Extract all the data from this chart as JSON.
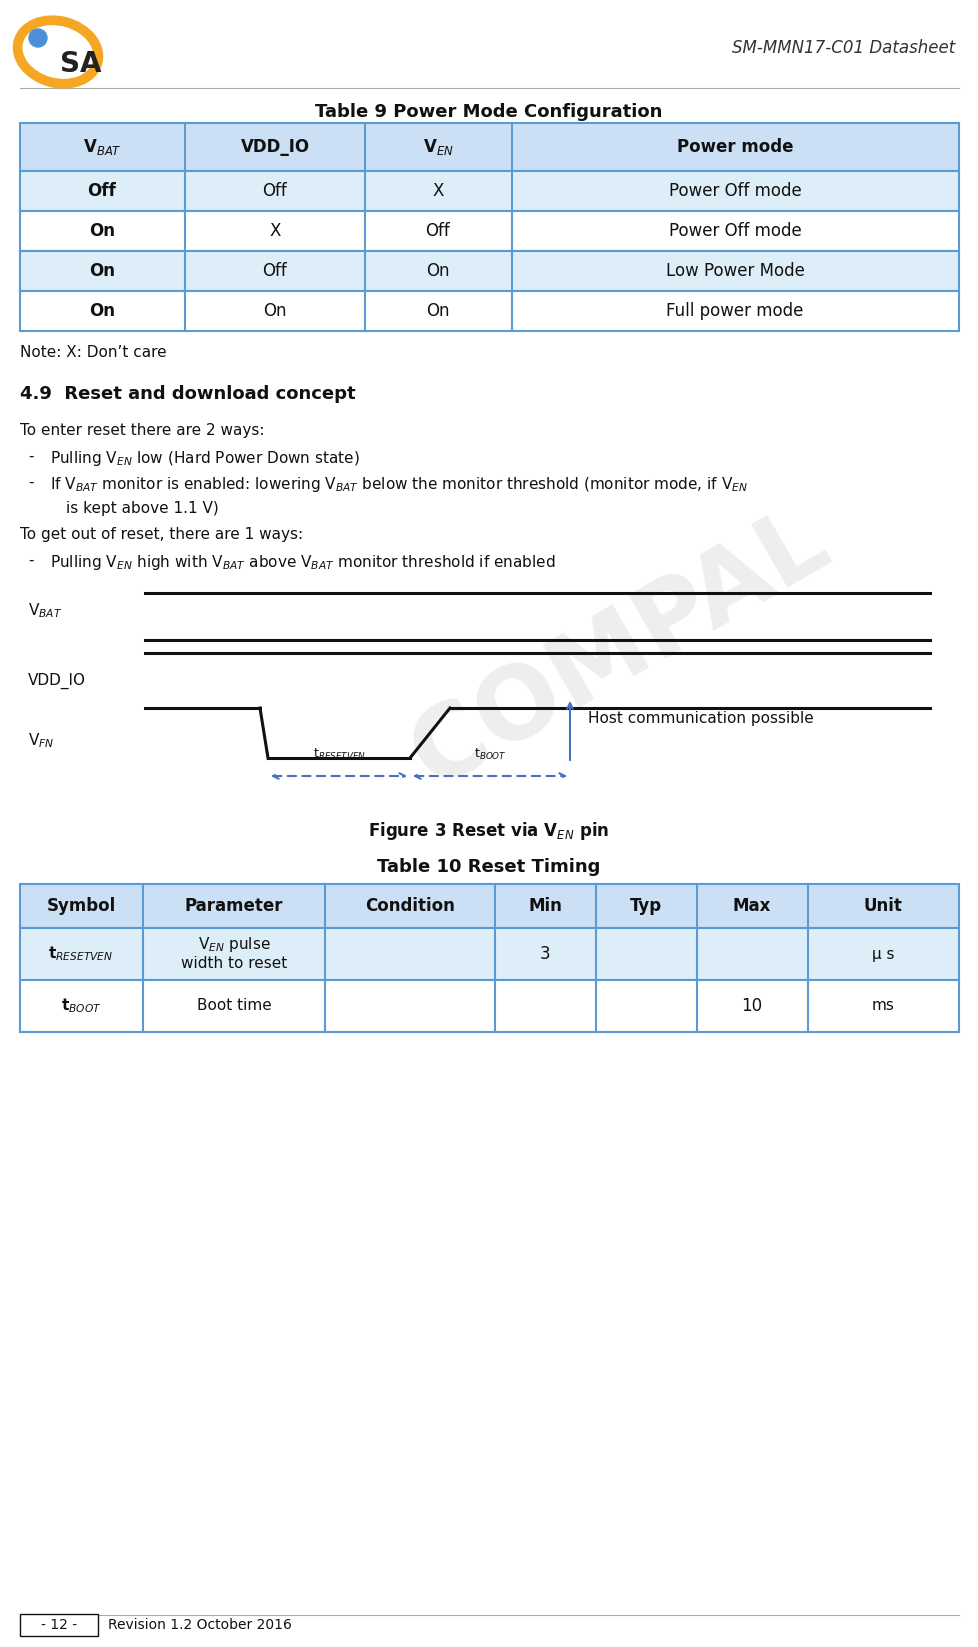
{
  "title_header": "SM-MMN17-C01 Datasheet",
  "table9_title": "Table 9 Power Mode Configuration",
  "table9_rows": [
    [
      "Off",
      "Off",
      "X",
      "Power Off mode"
    ],
    [
      "On",
      "X",
      "Off",
      "Power Off mode"
    ],
    [
      "On",
      "Off",
      "On",
      "Low Power Mode"
    ],
    [
      "On",
      "On",
      "On",
      "Full power mode"
    ]
  ],
  "note": "Note: X: Don’t care",
  "section_title": "4.9  Reset and download concept",
  "table10_title": "Table 10 Reset Timing",
  "table10_headers": [
    "Symbol",
    "Parameter",
    "Condition",
    "Min",
    "Typ",
    "Max",
    "Unit"
  ],
  "footer_page": "- 12 -",
  "footer_rev": "Revision 1.2 October 2016",
  "table_header_bg": "#cce0f5",
  "table_row_bg_alt": "#ddeef9",
  "table_row_bg_white": "#ffffff",
  "table_border_color": "#5b9bd5",
  "bg_color": "#ffffff",
  "black": "#111111",
  "blue": "#4472C4",
  "logo_ring_color": "#F5A623",
  "logo_dot_color": "#4a90d9",
  "watermark_color": "#d0d0d0"
}
